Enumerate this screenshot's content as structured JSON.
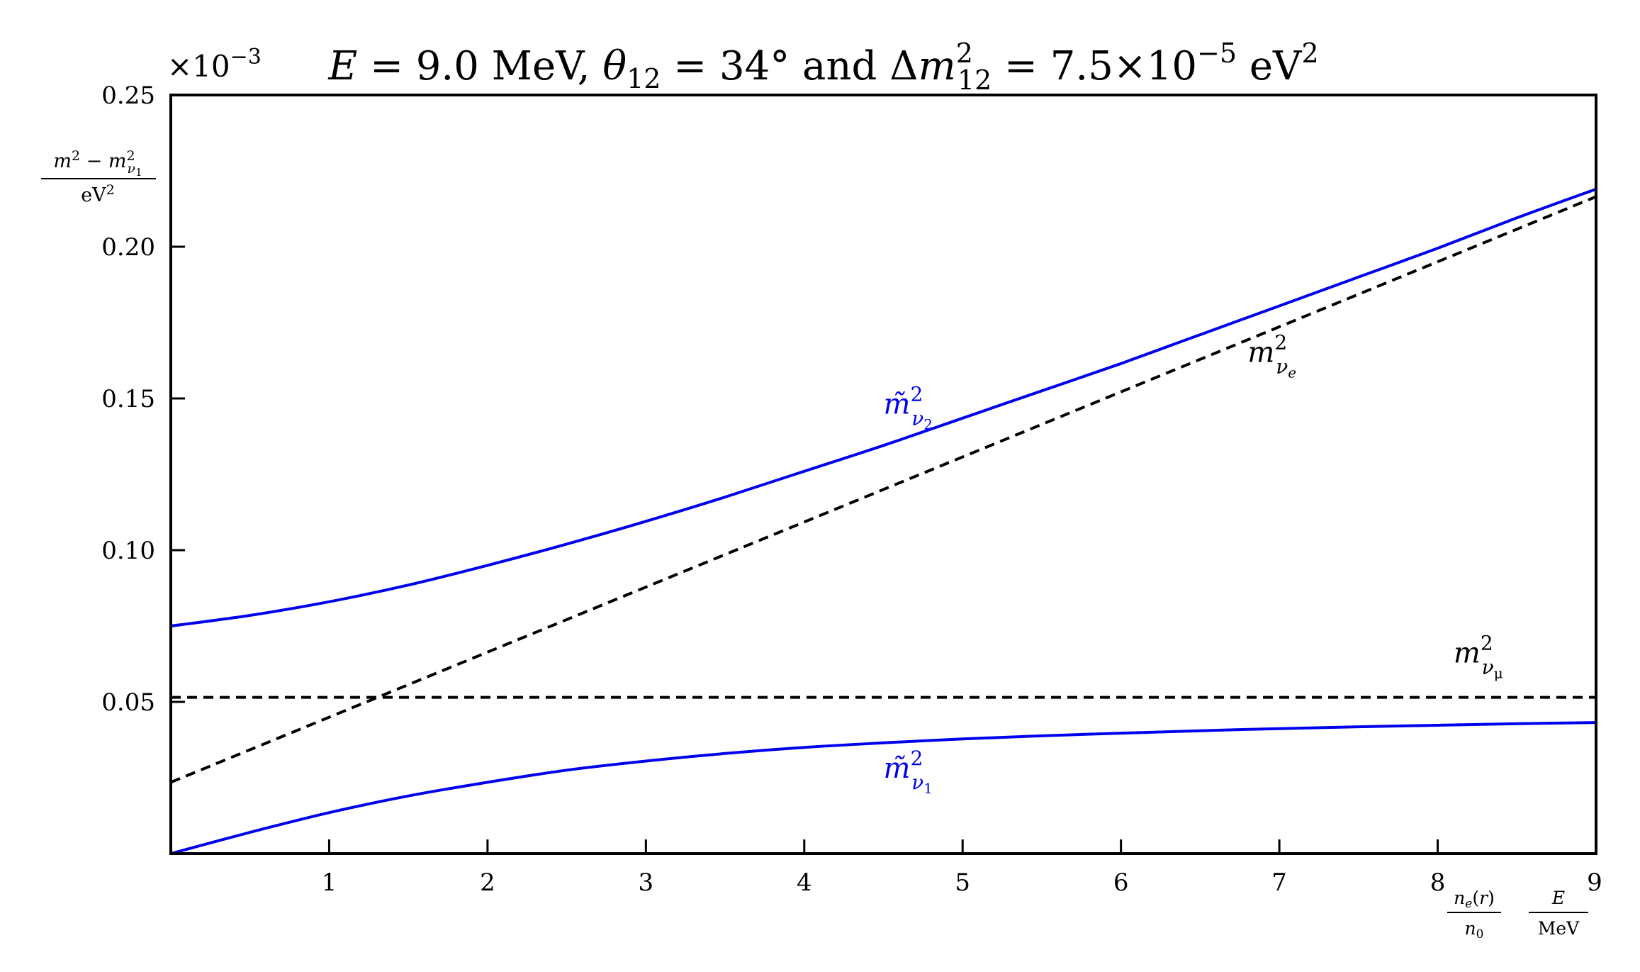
{
  "chart_data": {
    "type": "line",
    "title": "E = 9.0 MeV, θ12 = 34° and Δm²12 = 7.5×10⁻⁵ eV²",
    "xlabel": "n_e(r)/n_0 · E/MeV",
    "ylabel": "(m² − m²_ν1)/eV²",
    "y_multiplier": "×10⁻³",
    "xlim": [
      0,
      9
    ],
    "ylim": [
      0,
      0.25
    ],
    "x_ticks": [
      "1",
      "2",
      "3",
      "4",
      "5",
      "6",
      "7",
      "8",
      "9"
    ],
    "y_ticks": [
      "0.05",
      "0.10",
      "0.15",
      "0.20",
      "0.25"
    ],
    "grid": false,
    "series": [
      {
        "name": "m̃²_ν2",
        "color": "#0000ee",
        "dash": false,
        "x": [
          0,
          0.5,
          1,
          1.5,
          2,
          2.5,
          3,
          3.5,
          4,
          4.5,
          5,
          5.5,
          6,
          6.5,
          7,
          7.5,
          8,
          8.5,
          9
        ],
        "y": [
          0.075,
          0.0785,
          0.083,
          0.0885,
          0.095,
          0.102,
          0.1095,
          0.1175,
          0.126,
          0.1345,
          0.1435,
          0.1525,
          0.1615,
          0.171,
          0.1805,
          0.19,
          0.1995,
          0.2095,
          0.219
        ]
      },
      {
        "name": "m̃²_ν1",
        "color": "#0000ee",
        "dash": false,
        "x": [
          0,
          0.5,
          1,
          1.5,
          2,
          2.5,
          3,
          3.5,
          4,
          4.5,
          5,
          5.5,
          6,
          6.5,
          7,
          7.5,
          8,
          8.5,
          9
        ],
        "y": [
          0,
          0.007,
          0.0135,
          0.019,
          0.0235,
          0.0275,
          0.0305,
          0.033,
          0.035,
          0.0365,
          0.0378,
          0.0388,
          0.0397,
          0.0405,
          0.0412,
          0.0418,
          0.0423,
          0.0428,
          0.0432
        ]
      },
      {
        "name": "m²_νe",
        "color": "#000000",
        "dash": true,
        "x": [
          0,
          9
        ],
        "y": [
          0.0235,
          0.2165
        ]
      },
      {
        "name": "m²_νμ",
        "color": "#000000",
        "dash": true,
        "x": [
          0,
          9
        ],
        "y": [
          0.0515,
          0.0515
        ]
      }
    ],
    "annotations": [
      {
        "text": "m̃²_ν2",
        "x": 4.5,
        "y": 0.145,
        "color": "#0000ee"
      },
      {
        "text": "m²_νe",
        "x": 6.8,
        "y": 0.162,
        "color": "#000000"
      },
      {
        "text": "m²_νμ",
        "x": 8.1,
        "y": 0.063,
        "color": "#000000"
      },
      {
        "text": "m̃²_ν1",
        "x": 4.5,
        "y": 0.025,
        "color": "#0000ee"
      }
    ]
  }
}
